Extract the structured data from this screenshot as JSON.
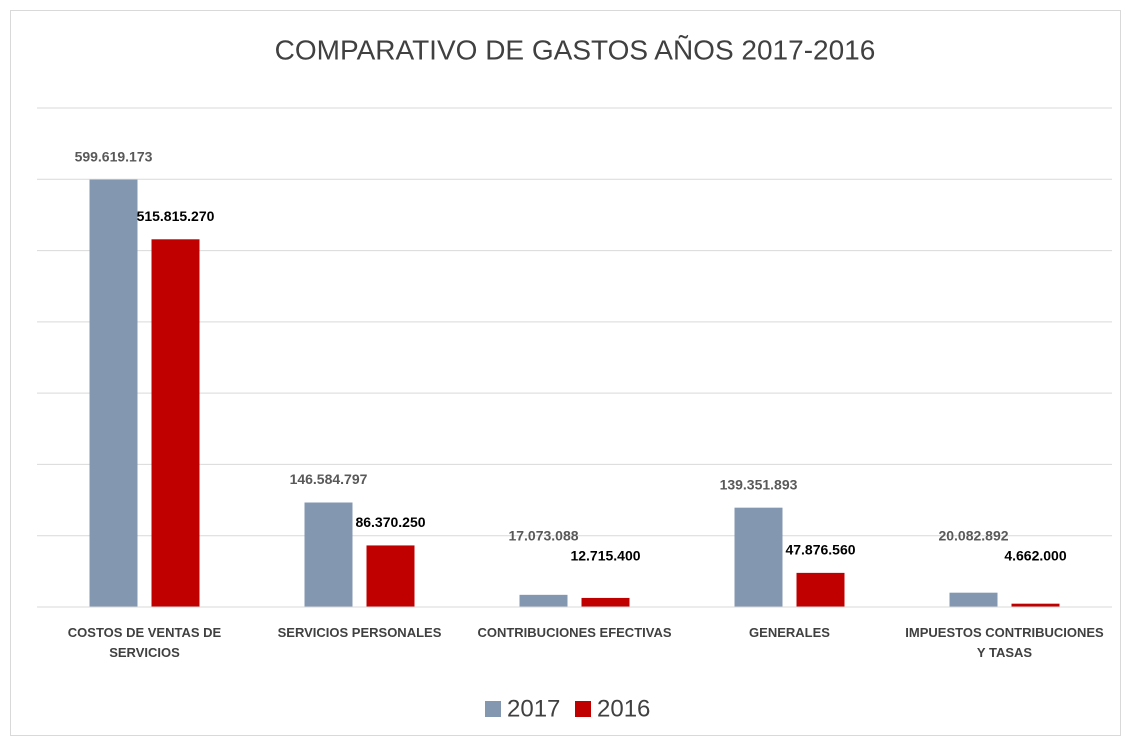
{
  "chart_data": {
    "type": "bar",
    "title": "COMPARATIVO DE GASTOS  AÑOS 2017-2016",
    "categories": [
      "COSTOS DE VENTAS  DE SERVICIOS",
      "SERVICIOS PERSONALES",
      "CONTRIBUCIONES EFECTIVAS",
      "GENERALES",
      "IMPUESTOS CONTRIBUCIONES Y TASAS"
    ],
    "series": [
      {
        "name": "2017",
        "color": "#8497b0",
        "values": [
          599619173,
          146584797,
          17073088,
          139351893,
          20082892
        ],
        "value_labels": [
          "599.619.173",
          "146.584.797",
          "17.073.088",
          "139.351.893",
          "20.082.892"
        ]
      },
      {
        "name": "2016",
        "color": "#c00000",
        "values": [
          515815270,
          86370250,
          12715400,
          47876560,
          4662000
        ],
        "value_labels": [
          "515.815.270",
          "86.370.250",
          "12.715.400",
          "47.876.560",
          "4.662.000"
        ]
      }
    ],
    "ylim": [
      0,
      700000000
    ],
    "yticks": [
      0,
      100000000,
      200000000,
      300000000,
      400000000,
      500000000,
      600000000,
      700000000
    ],
    "grid": true,
    "legend": "bottom"
  }
}
